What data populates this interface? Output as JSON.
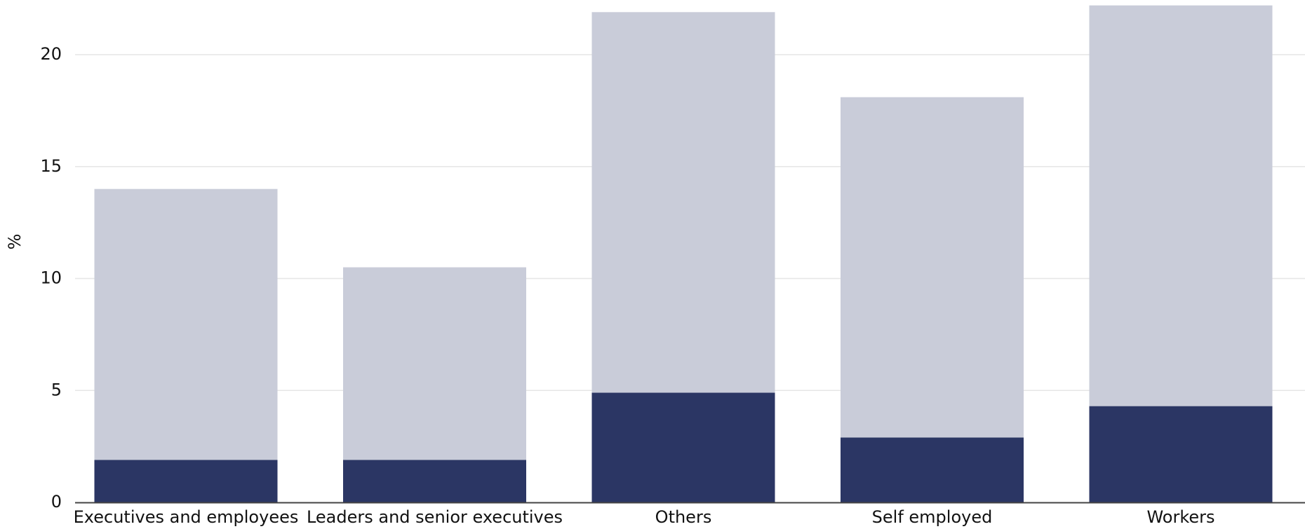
{
  "chart_data": {
    "type": "bar",
    "stacked": true,
    "categories": [
      "Executives and employees",
      "Leaders and senior executives",
      "Others",
      "Self employed",
      "Workers"
    ],
    "series": [
      {
        "color": "#2b3664",
        "values": [
          1.9,
          1.9,
          4.9,
          2.9,
          4.3
        ]
      },
      {
        "color": "#c9ccd9",
        "values": [
          12.1,
          8.6,
          17.0,
          15.2,
          17.9
        ]
      }
    ],
    "xlabel": "",
    "ylabel": "%",
    "ylim": [
      0,
      22.3
    ],
    "yticks": [
      0,
      5,
      10,
      15,
      20
    ],
    "grid": true,
    "legend": "none"
  }
}
